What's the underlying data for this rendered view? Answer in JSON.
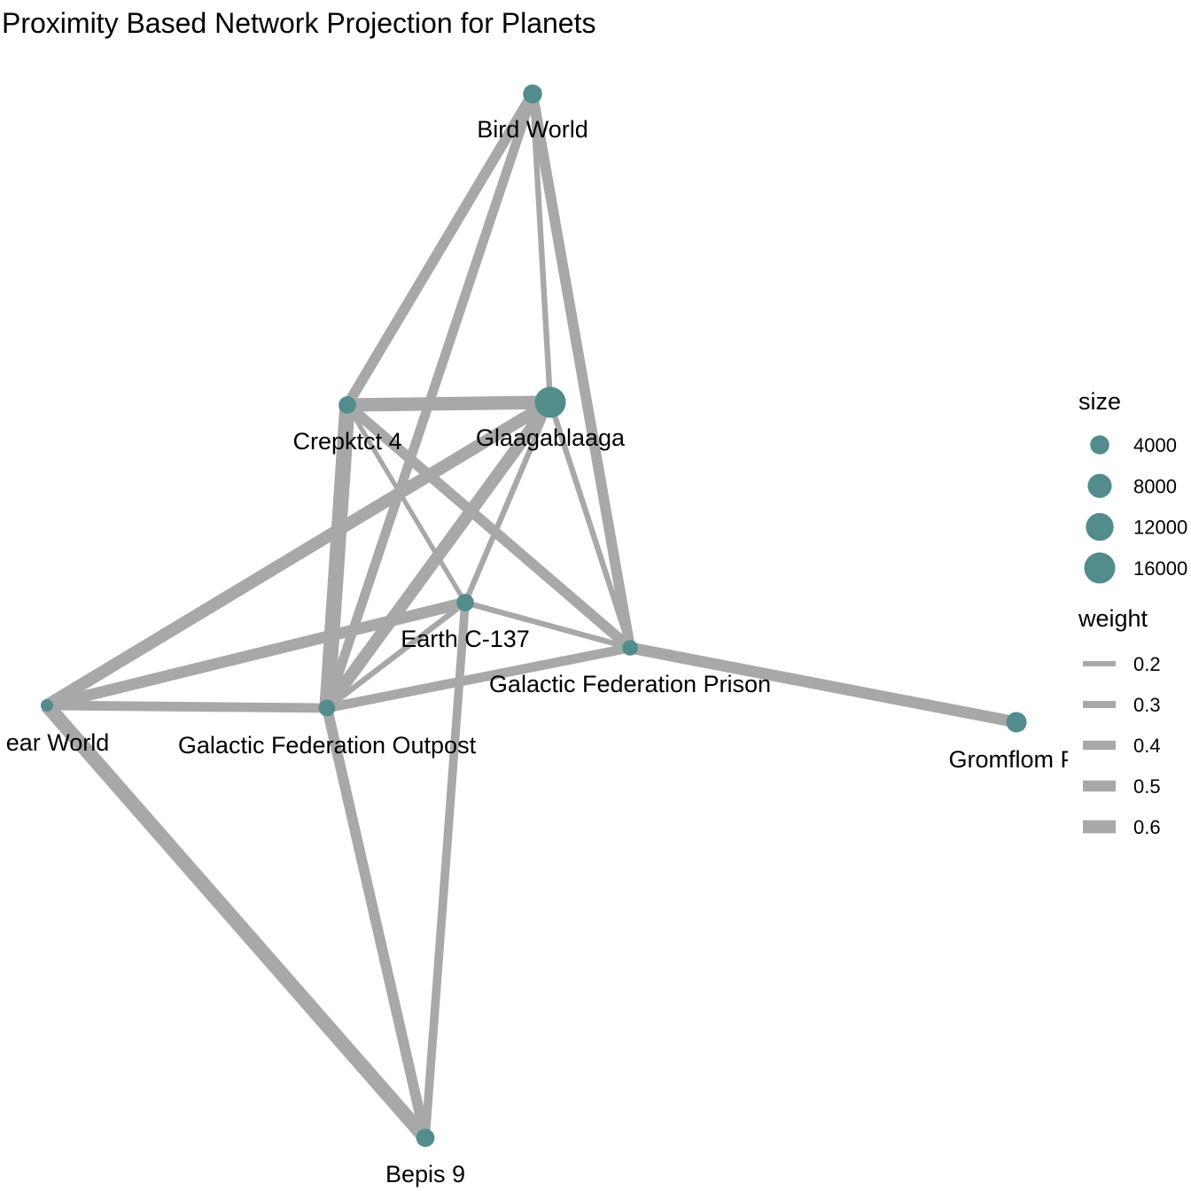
{
  "title": "Proximity Based Network Projection for Planets",
  "colors": {
    "node": "#528c8c",
    "edge": "#a8a8a8"
  },
  "chart_data": {
    "type": "network",
    "nodes": [
      {
        "id": "bird",
        "label": "Bird World",
        "size": 4000
      },
      {
        "id": "glaag",
        "label": "Glaagablaaga",
        "size": 16000
      },
      {
        "id": "crep",
        "label": "Crepktct 4",
        "size": 3000
      },
      {
        "id": "earth",
        "label": "Earth C-137",
        "size": 3000
      },
      {
        "id": "prison",
        "label": "Galactic Federation Prison",
        "size": 2000
      },
      {
        "id": "outpost",
        "label": "Galactic Federation Outpost",
        "size": 2500
      },
      {
        "id": "bear",
        "label": "ear World",
        "size": 800
      },
      {
        "id": "grom",
        "label": "Gromflom Pr",
        "size": 5000
      },
      {
        "id": "bepis",
        "label": "Bepis 9",
        "size": 3500
      }
    ],
    "edges": [
      {
        "source": "bird",
        "target": "crep",
        "weight": 0.45
      },
      {
        "source": "bird",
        "target": "outpost",
        "weight": 0.4
      },
      {
        "source": "bird",
        "target": "glaag",
        "weight": 0.2
      },
      {
        "source": "bird",
        "target": "prison",
        "weight": 0.45
      },
      {
        "source": "crep",
        "target": "glaag",
        "weight": 0.6
      },
      {
        "source": "crep",
        "target": "outpost",
        "weight": 0.7
      },
      {
        "source": "crep",
        "target": "earth",
        "weight": 0.15
      },
      {
        "source": "crep",
        "target": "prison",
        "weight": 0.45
      },
      {
        "source": "glaag",
        "target": "bear",
        "weight": 0.55
      },
      {
        "source": "glaag",
        "target": "outpost",
        "weight": 0.55
      },
      {
        "source": "glaag",
        "target": "earth",
        "weight": 0.2
      },
      {
        "source": "glaag",
        "target": "prison",
        "weight": 0.2
      },
      {
        "source": "bear",
        "target": "earth",
        "weight": 0.5
      },
      {
        "source": "bear",
        "target": "outpost",
        "weight": 0.4
      },
      {
        "source": "bear",
        "target": "bepis",
        "weight": 0.65
      },
      {
        "source": "earth",
        "target": "outpost",
        "weight": 0.2
      },
      {
        "source": "earth",
        "target": "prison",
        "weight": 0.2
      },
      {
        "source": "earth",
        "target": "bepis",
        "weight": 0.35
      },
      {
        "source": "outpost",
        "target": "prison",
        "weight": 0.4
      },
      {
        "source": "outpost",
        "target": "bepis",
        "weight": 0.45
      },
      {
        "source": "prison",
        "target": "grom",
        "weight": 0.5
      }
    ],
    "legend": {
      "size_title": "size",
      "size_entries": [
        "4000",
        "8000",
        "12000",
        "16000"
      ],
      "weight_title": "weight",
      "weight_entries": [
        "0.2",
        "0.3",
        "0.4",
        "0.5",
        "0.6"
      ]
    }
  }
}
